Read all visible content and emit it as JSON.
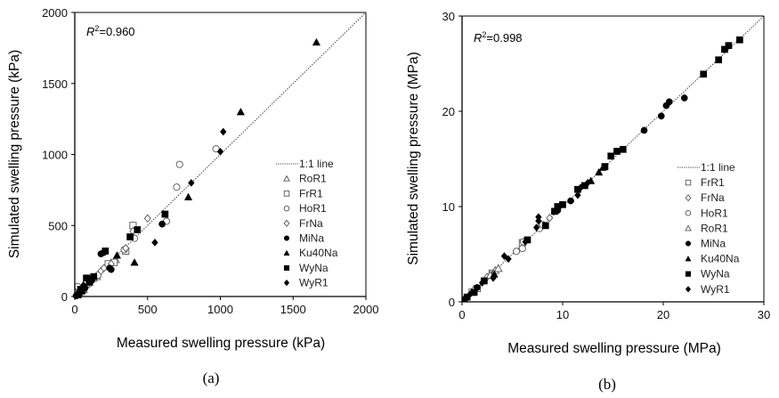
{
  "chart_data": [
    {
      "type": "scatter",
      "panel_label": "(a)",
      "annotation": {
        "prefix": "R",
        "sup": "2",
        "value": "=0.960"
      },
      "xlabel": "Measured swelling pressure (kPa)",
      "ylabel": "Simulated swelling pressure (kPa)",
      "xlim": [
        0,
        2000
      ],
      "ylim": [
        0,
        2000
      ],
      "xticks": [
        "0",
        "500",
        "1000",
        "1500",
        "2000"
      ],
      "yticks": [
        "0",
        "500",
        "1000",
        "1500",
        "2000"
      ],
      "tick_values": [
        0,
        500,
        1000,
        1500,
        2000
      ],
      "grid": false,
      "legend_position": "bottom-right",
      "reference_line": {
        "label": "1:1 line",
        "style": "dotted"
      },
      "series": [
        {
          "name": "RoR1",
          "marker": "triangle-open",
          "points": [
            [
              20,
              15
            ],
            [
              40,
              35
            ],
            [
              60,
              50
            ],
            [
              150,
              140
            ],
            [
              280,
              260
            ]
          ]
        },
        {
          "name": "FrR1",
          "marker": "square-open",
          "points": [
            [
              30,
              25
            ],
            [
              60,
              55
            ],
            [
              130,
              130
            ],
            [
              230,
              230
            ],
            [
              270,
              240
            ],
            [
              350,
              320
            ],
            [
              400,
              500
            ]
          ]
        },
        {
          "name": "HoR1",
          "marker": "circle-open",
          "points": [
            [
              20,
              70
            ],
            [
              50,
              45
            ],
            [
              100,
              90
            ],
            [
              160,
              150
            ],
            [
              340,
              330
            ],
            [
              410,
              410
            ],
            [
              630,
              530
            ],
            [
              700,
              770
            ],
            [
              720,
              930
            ],
            [
              970,
              1040
            ]
          ]
        },
        {
          "name": "FrNa",
          "marker": "diamond-open",
          "points": [
            [
              10,
              10
            ],
            [
              40,
              40
            ],
            [
              80,
              70
            ],
            [
              180,
              180
            ],
            [
              200,
              200
            ],
            [
              250,
              230
            ],
            [
              350,
              340
            ],
            [
              400,
              460
            ],
            [
              500,
              550
            ]
          ]
        },
        {
          "name": "MiNa",
          "marker": "circle-filled",
          "points": [
            [
              10,
              5
            ],
            [
              30,
              20
            ],
            [
              70,
              60
            ],
            [
              110,
              110
            ],
            [
              180,
              300
            ],
            [
              200,
              310
            ],
            [
              240,
              200
            ],
            [
              250,
              190
            ],
            [
              600,
              510
            ]
          ]
        },
        {
          "name": "Ku40Na",
          "marker": "triangle-filled",
          "points": [
            [
              20,
              10
            ],
            [
              50,
              40
            ],
            [
              100,
              100
            ],
            [
              290,
              290
            ],
            [
              410,
              240
            ],
            [
              780,
              700
            ],
            [
              1140,
              1300
            ],
            [
              1660,
              1790
            ]
          ]
        },
        {
          "name": "WyNa",
          "marker": "square-filled",
          "points": [
            [
              40,
              50
            ],
            [
              80,
              130
            ],
            [
              100,
              120
            ],
            [
              130,
              140
            ],
            [
              210,
              320
            ],
            [
              380,
              420
            ],
            [
              430,
              470
            ],
            [
              620,
              580
            ]
          ]
        },
        {
          "name": "WyR1",
          "marker": "diamond-filled",
          "points": [
            [
              15,
              15
            ],
            [
              60,
              80
            ],
            [
              120,
              110
            ],
            [
              550,
              380
            ],
            [
              800,
              800
            ],
            [
              1000,
              1020
            ],
            [
              1020,
              1160
            ]
          ]
        }
      ]
    },
    {
      "type": "scatter",
      "panel_label": "(b)",
      "annotation": {
        "prefix": "R",
        "sup": "2",
        "value": "=0.998"
      },
      "xlabel": "Measured swelling pressure (MPa)",
      "ylabel": "Simulated swelling pressure (MPa)",
      "xlim": [
        0,
        30
      ],
      "ylim": [
        0,
        30
      ],
      "xticks": [
        "0",
        "10",
        "20",
        "30"
      ],
      "yticks": [
        "0",
        "10",
        "20",
        "30"
      ],
      "tick_values": [
        0,
        10,
        20,
        30
      ],
      "grid": false,
      "legend_position": "bottom-right",
      "reference_line": {
        "label": "1:1 line",
        "style": "dotted"
      },
      "series": [
        {
          "name": "FrR1",
          "marker": "square-open",
          "points": [
            [
              1.0,
              1.0
            ],
            [
              1.5,
              1.4
            ],
            [
              3.0,
              3.0
            ],
            [
              6.0,
              6.2
            ]
          ]
        },
        {
          "name": "FrNa",
          "marker": "diamond-open",
          "points": [
            [
              1.2,
              1.3
            ],
            [
              2.5,
              2.6
            ],
            [
              3.2,
              3.1
            ],
            [
              8.7,
              8.8
            ]
          ]
        },
        {
          "name": "HoR1",
          "marker": "circle-open",
          "points": [
            [
              5.4,
              5.3
            ],
            [
              6.0,
              5.6
            ],
            [
              6.1,
              6.3
            ],
            [
              7.7,
              7.7
            ],
            [
              8.0,
              8.1
            ]
          ]
        },
        {
          "name": "RoR1",
          "marker": "triangle-open",
          "points": [
            [
              2.8,
              2.8
            ],
            [
              3.3,
              3.3
            ],
            [
              3.6,
              3.5
            ]
          ]
        },
        {
          "name": "MiNa",
          "marker": "circle-filled",
          "points": [
            [
              0.3,
              0.3
            ],
            [
              1.5,
              1.5
            ],
            [
              9.5,
              9.6
            ],
            [
              10.8,
              10.6
            ],
            [
              18.1,
              18.0
            ],
            [
              19.8,
              19.5
            ],
            [
              20.3,
              20.6
            ],
            [
              20.6,
              21.0
            ],
            [
              22.1,
              21.4
            ]
          ]
        },
        {
          "name": "Ku40Na",
          "marker": "triangle-filled",
          "points": [
            [
              3.2,
              2.9
            ],
            [
              12.8,
              12.7
            ],
            [
              13.6,
              13.6
            ],
            [
              14.0,
              14.1
            ]
          ]
        },
        {
          "name": "WyNa",
          "marker": "square-filled",
          "points": [
            [
              0.5,
              0.5
            ],
            [
              1.2,
              1.0
            ],
            [
              2.2,
              2.2
            ],
            [
              6.5,
              6.5
            ],
            [
              8.3,
              8.0
            ],
            [
              9.2,
              9.5
            ],
            [
              9.5,
              10.0
            ],
            [
              10.0,
              10.2
            ],
            [
              11.5,
              11.8
            ],
            [
              12.2,
              12.2
            ],
            [
              14.2,
              14.2
            ],
            [
              14.8,
              15.3
            ],
            [
              15.4,
              15.8
            ],
            [
              16.0,
              16.0
            ],
            [
              24.0,
              23.9
            ],
            [
              25.5,
              25.4
            ],
            [
              26.1,
              26.5
            ],
            [
              26.5,
              26.9
            ],
            [
              27.6,
              27.5
            ]
          ]
        },
        {
          "name": "WyR1",
          "marker": "diamond-filled",
          "points": [
            [
              0.8,
              0.8
            ],
            [
              2.0,
              2.0
            ],
            [
              3.1,
              2.5
            ],
            [
              4.2,
              4.8
            ],
            [
              4.6,
              4.5
            ],
            [
              6.3,
              6.3
            ],
            [
              7.4,
              7.8
            ],
            [
              7.6,
              8.5
            ],
            [
              7.6,
              8.9
            ],
            [
              11.5,
              11.2
            ],
            [
              11.8,
              12.0
            ],
            [
              12.5,
              12.5
            ]
          ]
        }
      ]
    }
  ]
}
